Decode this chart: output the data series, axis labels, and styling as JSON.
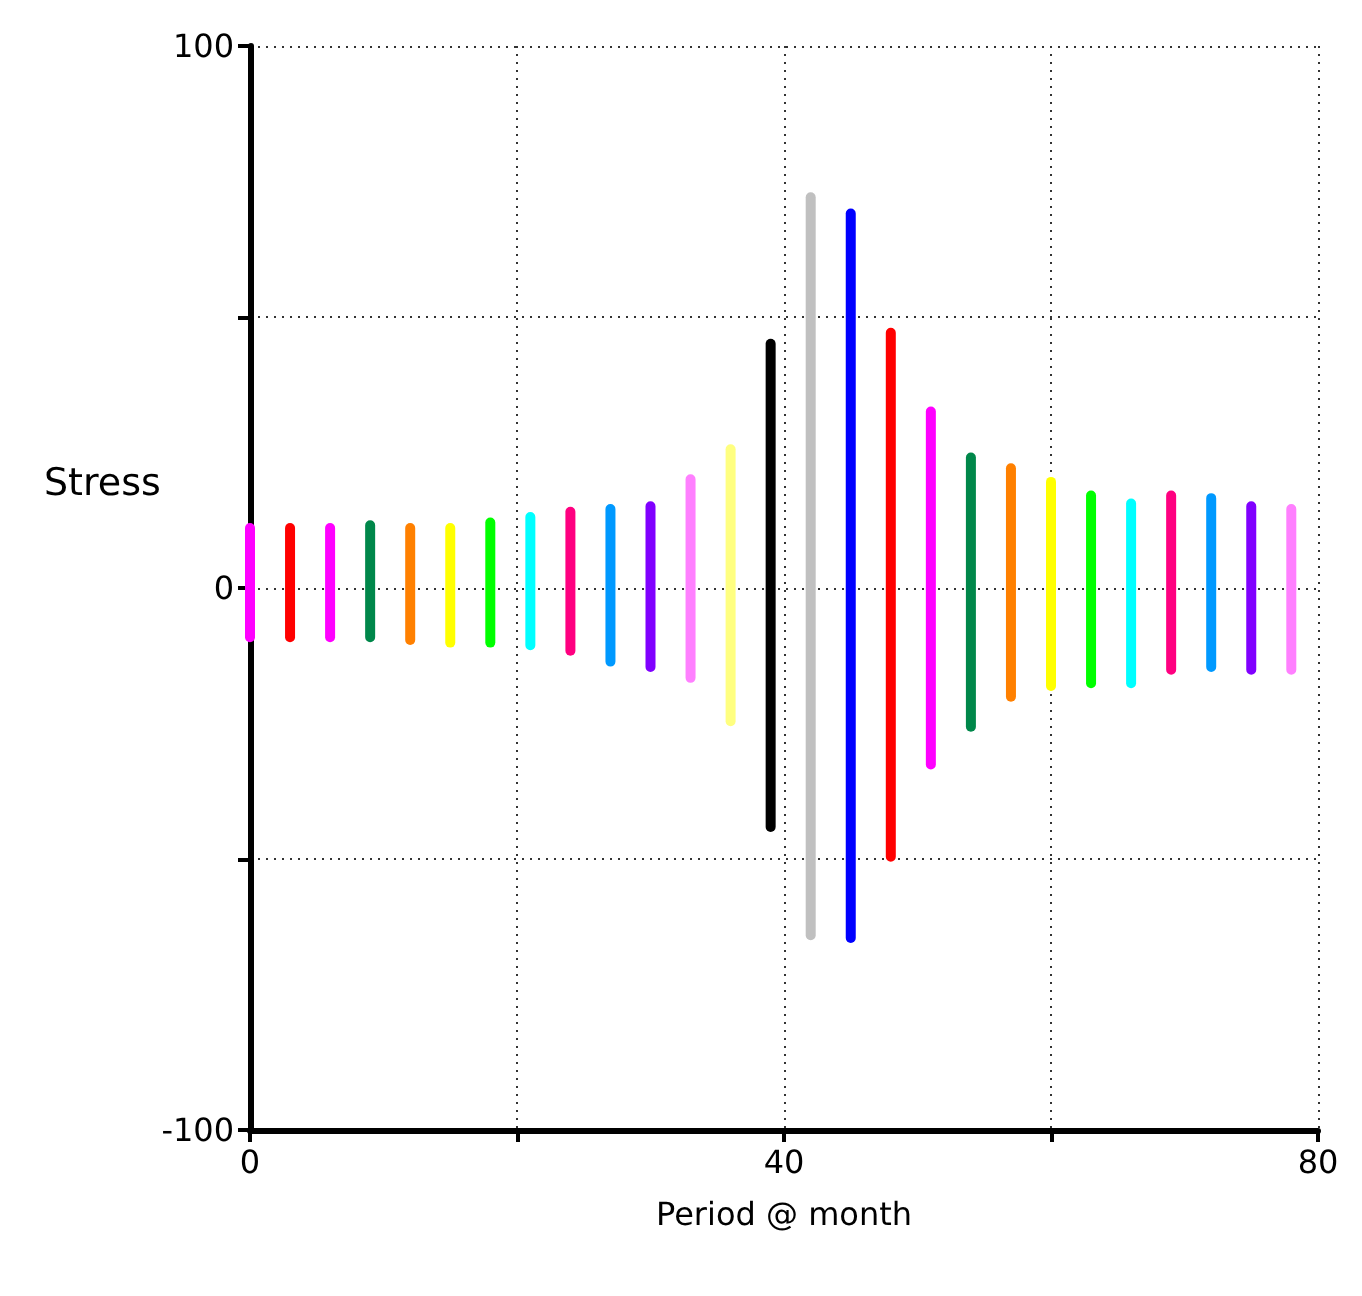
{
  "chart_data": {
    "type": "bar",
    "xlabel": "Period @ month",
    "ylabel": "Stress",
    "x": [
      0,
      3,
      6,
      9,
      12,
      15,
      18,
      21,
      24,
      27,
      30,
      33,
      36,
      39,
      42,
      45,
      48,
      51,
      54,
      57,
      60,
      63,
      66,
      69,
      72,
      75,
      78
    ],
    "base": [
      -10,
      -10,
      -10,
      -10,
      -10.5,
      -11,
      -11,
      -11.5,
      -12.5,
      -14.5,
      -15.5,
      -17.5,
      -25.5,
      -45,
      -65,
      -65.5,
      -50.5,
      -33.5,
      -26.5,
      -21,
      -19,
      -18.5,
      -18.5,
      -16,
      -15.5,
      -16,
      -16
    ],
    "values": [
      22,
      22,
      22,
      22.5,
      22.5,
      23,
      24,
      25.5,
      27.5,
      30,
      31.5,
      38.5,
      52,
      91,
      138,
      135.5,
      98.5,
      67,
      51.5,
      44,
      39.5,
      36.5,
      35,
      34,
      33,
      32,
      31.5
    ],
    "colors": [
      "#ff00ff",
      "#ff0000",
      "#ff00ff",
      "#00874a",
      "#ff8000",
      "#ffff00",
      "#00ff00",
      "#00ffff",
      "#ff0080",
      "#0099ff",
      "#8000ff",
      "#ff80ff",
      "#ffff80",
      "#000000",
      "#c0c0c0",
      "#0000ff",
      "#ff0000",
      "#ff00ff",
      "#00874a",
      "#ff8000",
      "#ffff00",
      "#00ff00",
      "#00ffff",
      "#ff0080",
      "#0099ff",
      "#8000ff",
      "#ff80ff"
    ],
    "xlim": [
      0,
      80
    ],
    "xticks": [
      0,
      {
        "value": 20,
        "label": null
      },
      40,
      {
        "value": 60,
        "label": null
      },
      80
    ],
    "ylim": [
      -100,
      100
    ],
    "yticks": [
      -100,
      {
        "value": -50,
        "label": null
      },
      0,
      {
        "value": 50,
        "label": null
      },
      100
    ],
    "grid": true
  }
}
